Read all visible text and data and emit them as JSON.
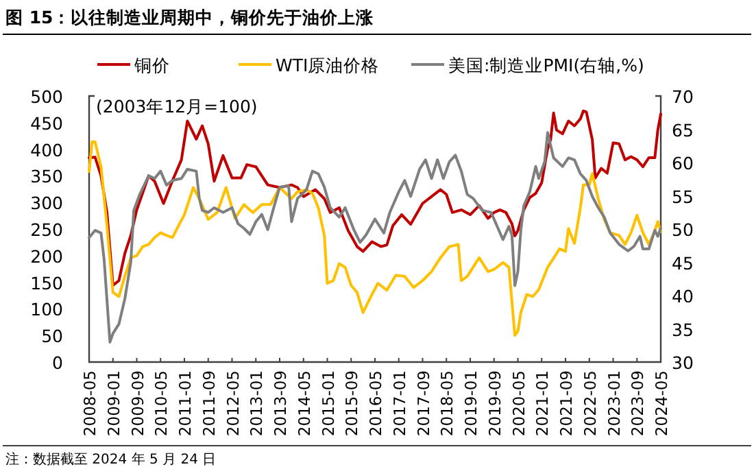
{
  "chart_data": {
    "type": "line",
    "title": "图 15：以往制造业周期中，铜价先于油价上涨",
    "annotations": [
      "(2003年12月=100)",
      "注：数据截至 2024 年 5 月 24 日"
    ],
    "xlim": [
      "2008-05",
      "2024-05"
    ],
    "xticks": [
      "2008-05",
      "2009-01",
      "2009-09",
      "2010-05",
      "2011-01",
      "2011-09",
      "2012-05",
      "2013-01",
      "2013-09",
      "2014-05",
      "2015-01",
      "2015-09",
      "2016-05",
      "2017-01",
      "2017-09",
      "2018-05",
      "2019-01",
      "2019-09",
      "2020-05",
      "2021-01",
      "2021-09",
      "2022-05",
      "2023-01",
      "2023-09",
      "2024-05"
    ],
    "ylim": [
      0,
      500
    ],
    "yticks": [
      0,
      50,
      100,
      150,
      200,
      250,
      300,
      350,
      400,
      450,
      500
    ],
    "y2lim": [
      30,
      70
    ],
    "y2ticks": [
      30,
      35,
      40,
      45,
      50,
      55,
      60,
      65,
      70
    ],
    "legend": "top",
    "grid": false,
    "marker": "none",
    "line_style": "solid",
    "series": [
      {
        "name": "铜价",
        "color": "#c00000",
        "x": [
          "2008-05",
          "2008-07",
          "2008-09",
          "2008-11",
          "2009-01",
          "2009-03",
          "2009-05",
          "2009-07",
          "2009-09",
          "2010-01",
          "2010-03",
          "2010-06",
          "2010-09",
          "2010-12",
          "2011-02",
          "2011-05",
          "2011-07",
          "2011-09",
          "2011-11",
          "2012-02",
          "2012-05",
          "2012-08",
          "2012-10",
          "2013-01",
          "2013-05",
          "2013-09",
          "2014-01",
          "2014-03",
          "2014-05",
          "2014-09",
          "2014-12",
          "2015-02",
          "2015-05",
          "2015-08",
          "2015-11",
          "2016-01",
          "2016-04",
          "2016-07",
          "2016-09",
          "2016-11",
          "2017-02",
          "2017-05",
          "2017-09",
          "2017-12",
          "2018-03",
          "2018-05",
          "2018-07",
          "2018-10",
          "2019-01",
          "2019-04",
          "2019-07",
          "2019-09",
          "2019-11",
          "2020-01",
          "2020-03",
          "2020-04",
          "2020-05",
          "2020-07",
          "2020-09",
          "2020-11",
          "2021-01",
          "2021-03",
          "2021-04",
          "2021-05",
          "2021-06",
          "2021-08",
          "2021-10",
          "2021-12",
          "2022-02",
          "2022-03",
          "2022-04",
          "2022-06",
          "2022-07",
          "2022-09",
          "2022-11",
          "2023-01",
          "2023-03",
          "2023-05",
          "2023-07",
          "2023-09",
          "2023-11",
          "2024-01",
          "2024-03",
          "2024-04",
          "2024-05"
        ],
        "values": [
          384,
          385,
          350,
          281,
          144,
          153,
          204,
          238,
          286,
          350,
          340,
          298,
          341,
          380,
          453,
          419,
          444,
          410,
          340,
          388,
          346,
          346,
          371,
          367,
          333,
          328,
          333,
          328,
          311,
          324,
          307,
          281,
          290,
          247,
          217,
          208,
          226,
          217,
          220,
          256,
          277,
          259,
          298,
          311,
          324,
          315,
          281,
          286,
          277,
          294,
          270,
          281,
          286,
          281,
          260,
          237,
          247,
          286,
          309,
          317,
          337,
          401,
          418,
          468,
          436,
          429,
          453,
          444,
          457,
          472,
          470,
          418,
          346,
          364,
          355,
          412,
          410,
          380,
          386,
          380,
          367,
          384,
          384,
          436,
          466
        ]
      },
      {
        "name": "WTI原油价格",
        "color": "#ffc000",
        "x": [
          "2008-05",
          "2008-06",
          "2008-07",
          "2008-09",
          "2008-11",
          "2009-01",
          "2009-02",
          "2009-03",
          "2009-05",
          "2009-07",
          "2009-09",
          "2009-11",
          "2010-01",
          "2010-03",
          "2010-05",
          "2010-07",
          "2010-09",
          "2010-11",
          "2011-01",
          "2011-04",
          "2011-06",
          "2011-09",
          "2011-12",
          "2012-03",
          "2012-06",
          "2012-09",
          "2012-12",
          "2013-03",
          "2013-06",
          "2013-09",
          "2014-01",
          "2014-03",
          "2014-06",
          "2014-08",
          "2014-10",
          "2014-12",
          "2015-01",
          "2015-03",
          "2015-05",
          "2015-07",
          "2015-09",
          "2015-11",
          "2016-01",
          "2016-04",
          "2016-06",
          "2016-09",
          "2016-12",
          "2017-03",
          "2017-06",
          "2017-09",
          "2017-12",
          "2018-03",
          "2018-06",
          "2018-09",
          "2018-10",
          "2018-12",
          "2019-04",
          "2019-07",
          "2019-09",
          "2019-12",
          "2020-02",
          "2020-04",
          "2020-05",
          "2020-06",
          "2020-08",
          "2020-10",
          "2020-12",
          "2021-03",
          "2021-05",
          "2021-07",
          "2021-09",
          "2021-10",
          "2021-12",
          "2022-02",
          "2022-03",
          "2022-05",
          "2022-06",
          "2022-08",
          "2022-10",
          "2022-12",
          "2023-03",
          "2023-05",
          "2023-07",
          "2023-09",
          "2023-11",
          "2024-01",
          "2024-03",
          "2024-04",
          "2024-05"
        ],
        "values": [
          358,
          414,
          414,
          367,
          256,
          131,
          127,
          123,
          161,
          196,
          200,
          217,
          221,
          234,
          243,
          238,
          234,
          256,
          277,
          328,
          307,
          268,
          281,
          328,
          270,
          296,
          281,
          296,
          296,
          328,
          307,
          320,
          324,
          317,
          290,
          238,
          148,
          153,
          185,
          178,
          144,
          131,
          93,
          127,
          148,
          135,
          163,
          161,
          140,
          153,
          170,
          196,
          217,
          221,
          153,
          161,
          196,
          170,
          174,
          187,
          178,
          50,
          58,
          93,
          127,
          123,
          136,
          178,
          195,
          213,
          208,
          251,
          223,
          290,
          333,
          333,
          354,
          307,
          268,
          243,
          238,
          221,
          243,
          276,
          243,
          221,
          247,
          264,
          245
        ]
      },
      {
        "name": "美国:制造业PMI(右轴,%)",
        "color": "#7f7f7f",
        "axis": "y2",
        "x": [
          "2008-05",
          "2008-07",
          "2008-09",
          "2008-10",
          "2008-12",
          "2009-01",
          "2009-03",
          "2009-05",
          "2009-07",
          "2009-08",
          "2009-10",
          "2010-01",
          "2010-03",
          "2010-05",
          "2010-07",
          "2010-09",
          "2010-12",
          "2011-02",
          "2011-05",
          "2011-06",
          "2011-07",
          "2011-09",
          "2011-11",
          "2012-02",
          "2012-05",
          "2012-07",
          "2012-09",
          "2012-11",
          "2013-01",
          "2013-03",
          "2013-05",
          "2013-07",
          "2013-09",
          "2013-12",
          "2014-01",
          "2014-03",
          "2014-06",
          "2014-08",
          "2014-10",
          "2014-12",
          "2015-02",
          "2015-05",
          "2015-07",
          "2015-10",
          "2015-12",
          "2016-02",
          "2016-05",
          "2016-08",
          "2016-10",
          "2017-01",
          "2017-03",
          "2017-05",
          "2017-08",
          "2017-10",
          "2017-12",
          "2018-02",
          "2018-04",
          "2018-06",
          "2018-08",
          "2018-10",
          "2018-12",
          "2019-02",
          "2019-05",
          "2019-08",
          "2019-12",
          "2020-02",
          "2020-03",
          "2020-04",
          "2020-05",
          "2020-06",
          "2020-07",
          "2020-09",
          "2020-11",
          "2020-12",
          "2021-02",
          "2021-03",
          "2021-05",
          "2021-08",
          "2021-10",
          "2021-12",
          "2022-02",
          "2022-04",
          "2022-06",
          "2022-08",
          "2022-10",
          "2022-12",
          "2023-03",
          "2023-06",
          "2023-08",
          "2023-10",
          "2023-11",
          "2024-01",
          "2024-03",
          "2024-04",
          "2024-05"
        ],
        "values": [
          48.7,
          49.8,
          49.4,
          45.6,
          33.0,
          34.3,
          35.7,
          39.5,
          45.0,
          52.8,
          55.2,
          58.0,
          57.6,
          58.7,
          56.6,
          57.3,
          57.6,
          59.0,
          58.7,
          54.6,
          52.8,
          52.5,
          53.2,
          52.5,
          53.2,
          50.8,
          50.1,
          49.2,
          51.1,
          52.2,
          49.9,
          53.2,
          56.3,
          56.5,
          51.1,
          54.6,
          55.9,
          58.7,
          58.3,
          56.3,
          53.2,
          51.8,
          53.2,
          49.8,
          48.0,
          49.1,
          51.5,
          49.4,
          52.5,
          55.6,
          57.3,
          54.9,
          59.0,
          60.4,
          57.6,
          60.4,
          57.6,
          60.1,
          61.1,
          58.7,
          55.2,
          54.6,
          52.8,
          52.5,
          48.4,
          50.4,
          49.1,
          41.5,
          43.6,
          49.8,
          53.5,
          55.6,
          59.4,
          57.6,
          60.1,
          64.5,
          60.7,
          59.4,
          60.7,
          60.4,
          58.3,
          57.3,
          54.9,
          53.2,
          51.8,
          49.4,
          47.7,
          46.7,
          47.4,
          48.9,
          47.0,
          47.0,
          49.8,
          48.9,
          50.1
        ]
      }
    ]
  }
}
